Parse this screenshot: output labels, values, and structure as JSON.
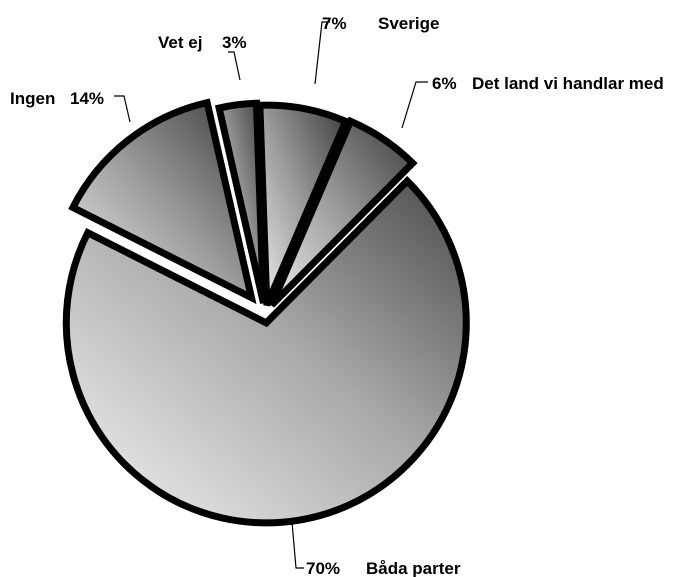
{
  "chart_data": {
    "type": "pie",
    "title": "",
    "legend": "none",
    "slices": [
      {
        "name": "Sverige",
        "value": 7,
        "label": "7%"
      },
      {
        "name": "Det land vi handlar med",
        "value": 6,
        "label": "6%"
      },
      {
        "name": "Båda parter",
        "value": 70,
        "label": "70%"
      },
      {
        "name": "Ingen",
        "value": 14,
        "label": "14%"
      },
      {
        "name": "Vet ej",
        "value": 3,
        "label": "3%"
      }
    ]
  }
}
